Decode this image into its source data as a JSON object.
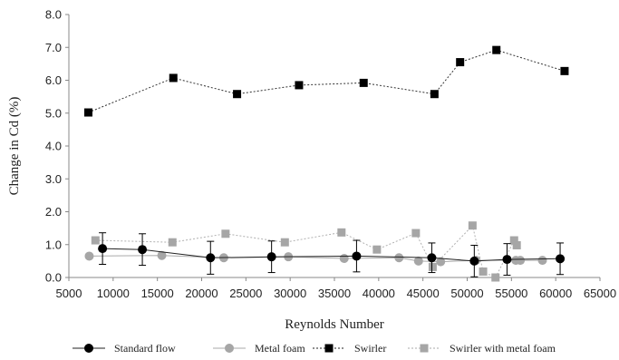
{
  "chart_data": {
    "type": "scatter",
    "xlabel": "Reynolds Number",
    "ylabel": "Change in Cd (%)",
    "xlim": [
      5000,
      65000
    ],
    "ylim": [
      0.0,
      8.0
    ],
    "x_ticks": [
      "5000",
      "10000",
      "15000",
      "20000",
      "25000",
      "30000",
      "35000",
      "40000",
      "45000",
      "50000",
      "55000",
      "60000",
      "65000"
    ],
    "y_ticks": [
      "0.0",
      "1.0",
      "2.0",
      "3.0",
      "4.0",
      "5.0",
      "6.0",
      "7.0",
      "8.0"
    ],
    "legend_position": "bottom",
    "series": [
      {
        "name": "Standard flow",
        "marker": "circle",
        "color": "#000000",
        "line": "solid",
        "points": [
          {
            "x": 8800,
            "y": 0.88,
            "err": 0.48
          },
          {
            "x": 13300,
            "y": 0.85,
            "err": 0.48
          },
          {
            "x": 21000,
            "y": 0.6,
            "err": 0.5
          },
          {
            "x": 27900,
            "y": 0.63,
            "err": 0.48
          },
          {
            "x": 37500,
            "y": 0.65,
            "err": 0.48
          },
          {
            "x": 46000,
            "y": 0.6,
            "err": 0.45
          },
          {
            "x": 50800,
            "y": 0.5,
            "err": 0.48
          },
          {
            "x": 54500,
            "y": 0.55,
            "err": 0.48
          },
          {
            "x": 60500,
            "y": 0.57,
            "err": 0.48
          }
        ]
      },
      {
        "name": "Metal foam",
        "marker": "circle",
        "color": "#a6a6a6",
        "line": "solid",
        "points": [
          {
            "x": 7300,
            "y": 0.65
          },
          {
            "x": 15500,
            "y": 0.67
          },
          {
            "x": 22500,
            "y": 0.6
          },
          {
            "x": 29800,
            "y": 0.63
          },
          {
            "x": 36100,
            "y": 0.58
          },
          {
            "x": 42300,
            "y": 0.6
          },
          {
            "x": 44500,
            "y": 0.5
          },
          {
            "x": 47000,
            "y": 0.48
          },
          {
            "x": 51000,
            "y": 0.52
          },
          {
            "x": 55500,
            "y": 0.52
          },
          {
            "x": 56000,
            "y": 0.52
          },
          {
            "x": 58500,
            "y": 0.52
          }
        ]
      },
      {
        "name": "Swirler",
        "marker": "square",
        "color": "#000000",
        "line": "dotted",
        "points": [
          {
            "x": 7200,
            "y": 5.02
          },
          {
            "x": 16800,
            "y": 6.07
          },
          {
            "x": 24000,
            "y": 5.58
          },
          {
            "x": 31000,
            "y": 5.85
          },
          {
            "x": 38300,
            "y": 5.92
          },
          {
            "x": 46300,
            "y": 5.58
          },
          {
            "x": 49200,
            "y": 6.55
          },
          {
            "x": 53300,
            "y": 6.92
          },
          {
            "x": 61000,
            "y": 6.28
          }
        ]
      },
      {
        "name": "Swirler with metal foam",
        "marker": "square",
        "color": "#a6a6a6",
        "line": "dotted",
        "points": [
          {
            "x": 8000,
            "y": 1.13
          },
          {
            "x": 16700,
            "y": 1.07
          },
          {
            "x": 22700,
            "y": 1.33
          },
          {
            "x": 29400,
            "y": 1.07
          },
          {
            "x": 35800,
            "y": 1.37
          },
          {
            "x": 39800,
            "y": 0.85
          },
          {
            "x": 44200,
            "y": 1.35
          },
          {
            "x": 46100,
            "y": 0.32
          },
          {
            "x": 50600,
            "y": 1.58
          },
          {
            "x": 51800,
            "y": 0.18
          },
          {
            "x": 53200,
            "y": 0.0
          },
          {
            "x": 55300,
            "y": 1.13
          },
          {
            "x": 55600,
            "y": 0.98
          }
        ]
      }
    ]
  }
}
